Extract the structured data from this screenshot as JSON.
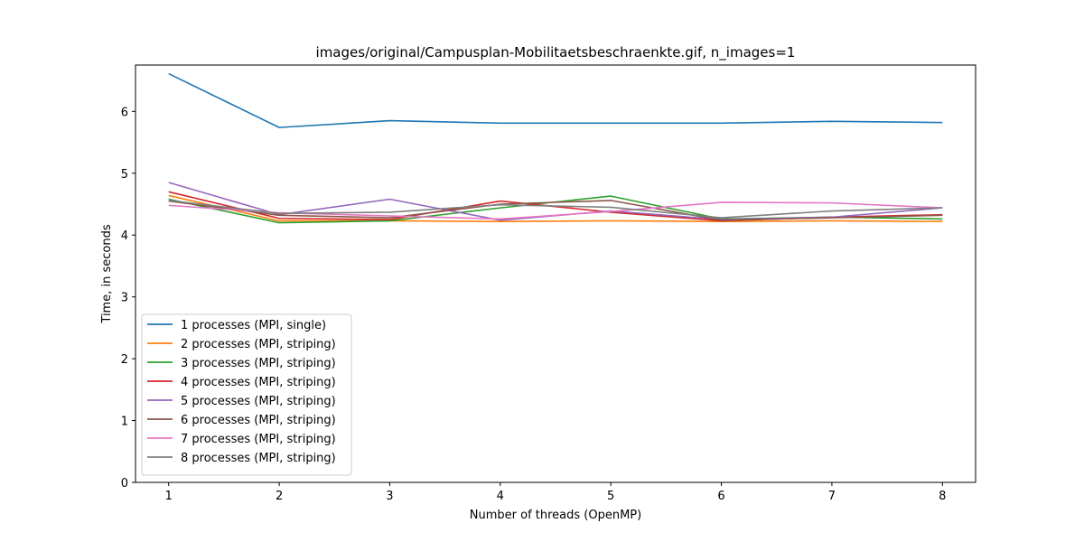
{
  "chart_data": {
    "type": "line",
    "title": "images/original/Campusplan-Mobilitaetsbeschraenkte.gif, n_images=1",
    "xlabel": "Number of threads (OpenMP)",
    "ylabel": "Time, in seconds",
    "x": [
      1,
      2,
      3,
      4,
      5,
      6,
      7,
      8
    ],
    "xlim": [
      0.7,
      8.3
    ],
    "ylim": [
      0,
      6.75
    ],
    "xticks": [
      "1",
      "2",
      "3",
      "4",
      "5",
      "6",
      "7",
      "8"
    ],
    "yticks": [
      "0",
      "1",
      "2",
      "3",
      "4",
      "5",
      "6"
    ],
    "grid": false,
    "legend_position": "lower-left",
    "series": [
      {
        "name": "1 processes (MPI, single)",
        "color": "#1f77b4",
        "values": [
          6.61,
          5.74,
          5.85,
          5.81,
          5.81,
          5.81,
          5.84,
          5.82
        ]
      },
      {
        "name": "2 processes (MPI, striping)",
        "color": "#ff7f0e",
        "values": [
          4.64,
          4.23,
          4.23,
          4.22,
          4.23,
          4.22,
          4.23,
          4.22
        ]
      },
      {
        "name": "3 processes (MPI, striping)",
        "color": "#2ca02c",
        "values": [
          4.58,
          4.2,
          4.23,
          4.44,
          4.63,
          4.26,
          4.29,
          4.26
        ]
      },
      {
        "name": "4 processes (MPI, striping)",
        "color": "#d62728",
        "values": [
          4.7,
          4.27,
          4.25,
          4.55,
          4.37,
          4.23,
          4.29,
          4.33
        ]
      },
      {
        "name": "5 processes (MPI, striping)",
        "color": "#9467bd",
        "values": [
          4.85,
          4.33,
          4.58,
          4.24,
          4.39,
          4.25,
          4.29,
          4.44
        ]
      },
      {
        "name": "6 processes (MPI, striping)",
        "color": "#8c564b",
        "values": [
          4.55,
          4.32,
          4.28,
          4.5,
          4.56,
          4.24,
          4.28,
          4.32
        ]
      },
      {
        "name": "7 processes (MPI, striping)",
        "color": "#e377c2",
        "values": [
          4.48,
          4.36,
          4.31,
          4.26,
          4.38,
          4.53,
          4.52,
          4.44
        ]
      },
      {
        "name": "8 processes (MPI, striping)",
        "color": "#7f7f7f",
        "values": [
          4.56,
          4.35,
          4.37,
          4.49,
          4.45,
          4.28,
          4.39,
          4.44
        ]
      }
    ]
  }
}
